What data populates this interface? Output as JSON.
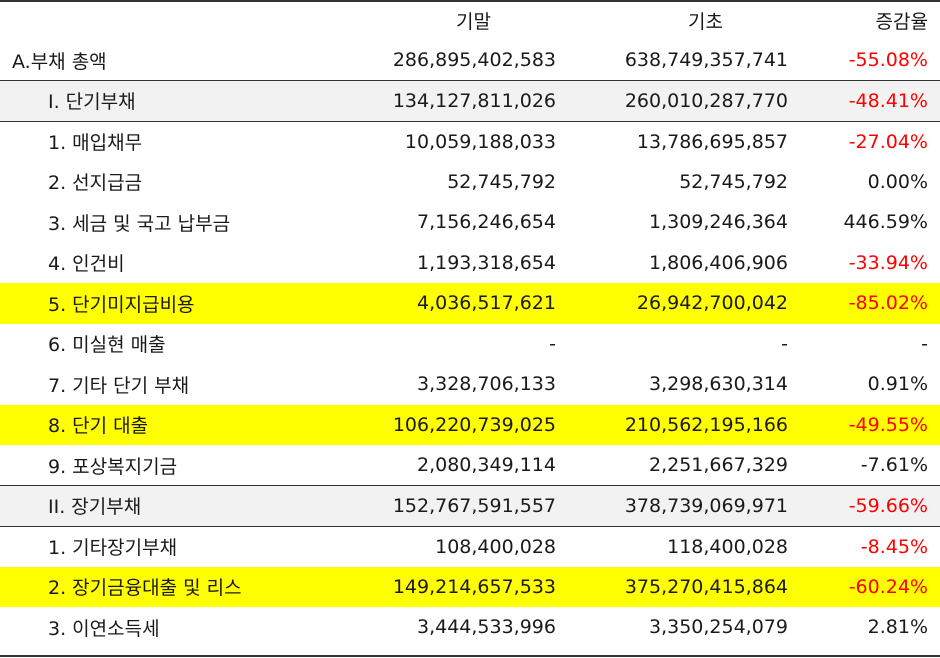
{
  "header": {
    "col_end": "기말",
    "col_begin": "기초",
    "col_rate": "증감율"
  },
  "rows": [
    {
      "label": "A.부채 총액",
      "end": "286,895,402,583",
      "begin": "638,749,357,741",
      "rate": "-55.08%",
      "kind": "total",
      "negative": true
    },
    {
      "label": "I. 단기부채",
      "end": "134,127,811,026",
      "begin": "260,010,287,770",
      "rate": "-48.41%",
      "kind": "section",
      "negative": true
    },
    {
      "label": "1. 매입채무",
      "end": "10,059,188,033",
      "begin": "13,786,695,857",
      "rate": "-27.04%",
      "kind": "item",
      "negative": true
    },
    {
      "label": "2. 선지급금",
      "end": "52,745,792",
      "begin": "52,745,792",
      "rate": "0.00%",
      "kind": "item",
      "negative": false
    },
    {
      "label": "3. 세금 및 국고 납부금",
      "end": "7,156,246,654",
      "begin": "1,309,246,364",
      "rate": "446.59%",
      "kind": "item",
      "negative": false
    },
    {
      "label": "4. 인건비",
      "end": "1,193,318,654",
      "begin": "1,806,406,906",
      "rate": "-33.94%",
      "kind": "item",
      "negative": true
    },
    {
      "label": "5. 단기미지급비용",
      "end": "4,036,517,621",
      "begin": "26,942,700,042",
      "rate": "-85.02%",
      "kind": "highlight",
      "negative": true
    },
    {
      "label": "6. 미실현 매출",
      "end": "-",
      "begin": "-",
      "rate": "-",
      "kind": "item",
      "negative": false
    },
    {
      "label": "7. 기타 단기 부채",
      "end": "3,328,706,133",
      "begin": "3,298,630,314",
      "rate": "0.91%",
      "kind": "item",
      "negative": false
    },
    {
      "label": "8. 단기 대출",
      "end": "106,220,739,025",
      "begin": "210,562,195,166",
      "rate": "-49.55%",
      "kind": "highlight",
      "negative": true
    },
    {
      "label": "9. 포상복지기금",
      "end": "2,080,349,114",
      "begin": "2,251,667,329",
      "rate": "-7.61%",
      "kind": "item",
      "negative": false
    },
    {
      "label": "II. 장기부채",
      "end": "152,767,591,557",
      "begin": "378,739,069,971",
      "rate": "-59.66%",
      "kind": "section",
      "negative": true
    },
    {
      "label": "1. 기타장기부채",
      "end": "108,400,028",
      "begin": "118,400,028",
      "rate": "-8.45%",
      "kind": "item",
      "negative": true
    },
    {
      "label": "2. 장기금융대출 및 리스",
      "end": "149,214,657,533",
      "begin": "375,270,415,864",
      "rate": "-60.24%",
      "kind": "highlight",
      "negative": true
    },
    {
      "label": "3. 이연소득세",
      "end": "3,444,533,996",
      "begin": "3,350,254,079",
      "rate": "2.81%",
      "kind": "item",
      "negative": false
    }
  ],
  "colors": {
    "negative": "#ff0000",
    "highlight": "#ffff00",
    "section_bg": "#f2f2f2"
  }
}
